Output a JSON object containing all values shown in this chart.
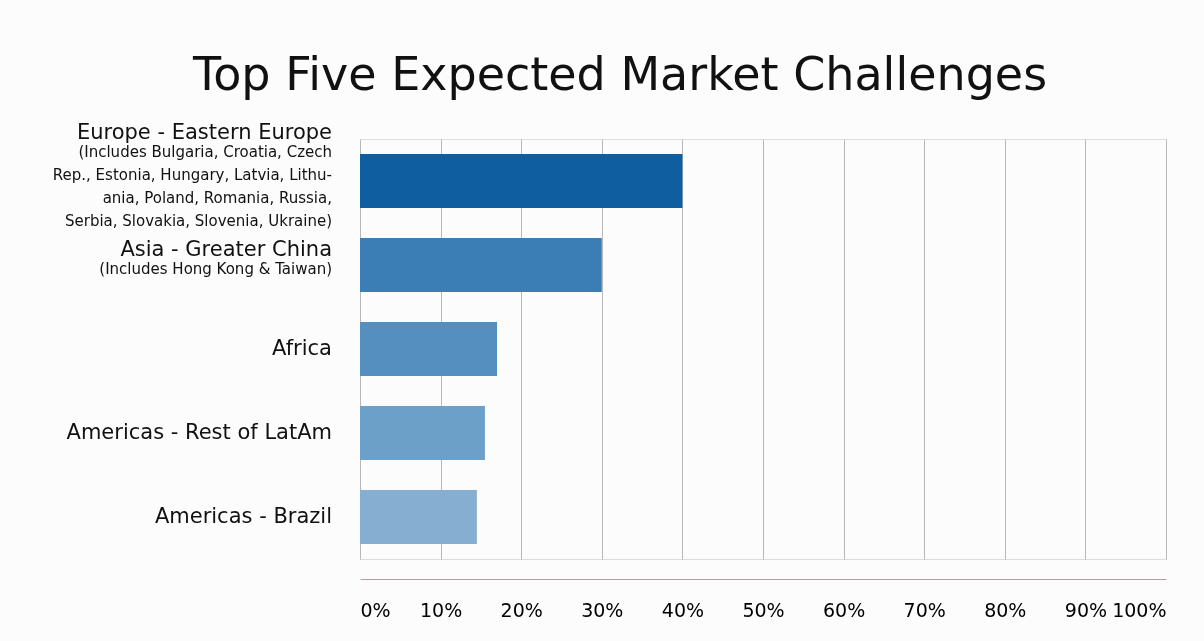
{
  "chart_data": {
    "type": "bar",
    "orientation": "horizontal",
    "title": "Top Five Expected Market Challenges",
    "categories": [
      "Europe - Eastern Europe\n(Includes Bulgaria, Croatia, Czech\nRep., Estonia, Hungary, Latvia, Lithu-\nania, Poland, Romania, Russia,\nSerbia, Slovakia, Slovenia, Ukraine)",
      "Asia - Greater China\n(Includes Hong Kong & Taiwan)",
      "Africa",
      "Americas - Rest of LatAm",
      "Americas - Brazil"
    ],
    "values": [
      40,
      30,
      17,
      15.5,
      14.5
    ],
    "colors": [
      "#0f5fa0",
      "#3b7eb5",
      "#558fbf",
      "#6ca0c8",
      "#85aed1"
    ],
    "xlim": [
      0,
      100
    ],
    "xticks": [
      {
        "value": 0,
        "label": "0%"
      },
      {
        "value": 10,
        "label": "10%"
      },
      {
        "value": 20,
        "label": "20%"
      },
      {
        "value": 30,
        "label": "30%"
      },
      {
        "value": 40,
        "label": "40%"
      },
      {
        "value": 50,
        "label": "50%"
      },
      {
        "value": 60,
        "label": "60%"
      },
      {
        "value": 70,
        "label": "70%"
      },
      {
        "value": 80,
        "label": "80%"
      },
      {
        "value": 90,
        "label": "90%"
      },
      {
        "value": 100,
        "label": "100%"
      }
    ],
    "grid": "x"
  }
}
